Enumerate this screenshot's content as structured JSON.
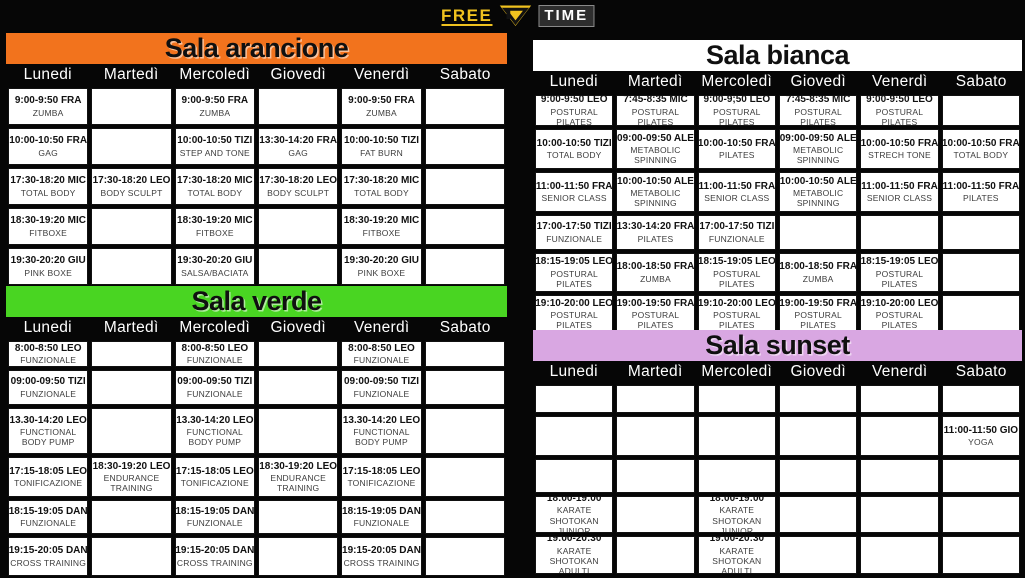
{
  "logo": {
    "free": "FREE",
    "time": "TIME",
    "brand_yellow": "#f0c21f"
  },
  "days": [
    "Lunedi",
    "Martedì",
    "Mercoledì",
    "Giovedì",
    "Venerdì",
    "Sabato"
  ],
  "rooms": [
    {
      "id": "arancione",
      "title": "Sala arancione",
      "color": "#f2731d",
      "rows": [
        [
          {
            "time": "9:00-9:50 FRA",
            "activity": "ZUMBA"
          },
          null,
          {
            "time": "9:00-9:50 FRA",
            "activity": "ZUMBA"
          },
          null,
          {
            "time": "9:00-9:50 FRA",
            "activity": "ZUMBA"
          },
          null
        ],
        [
          {
            "time": "10:00-10:50 FRA",
            "activity": "GAG"
          },
          null,
          {
            "time": "10:00-10:50 TIZI",
            "activity": "STEP AND TONE"
          },
          {
            "time": "13:30-14:20 FRA",
            "activity": "GAG"
          },
          {
            "time": "10:00-10:50 TIZI",
            "activity": "FAT BURN"
          },
          null
        ],
        [
          {
            "time": "17:30-18:20 MIC",
            "activity": "TOTAL BODY"
          },
          {
            "time": "17:30-18:20 LEO",
            "activity": "BODY SCULPT"
          },
          {
            "time": "17:30-18:20 MIC",
            "activity": "TOTAL BODY"
          },
          {
            "time": "17:30-18:20 LEO",
            "activity": "BODY SCULPT"
          },
          {
            "time": "17:30-18:20 MIC",
            "activity": "TOTAL BODY"
          },
          null
        ],
        [
          {
            "time": "18:30-19:20  MIC",
            "activity": "FITBOXE"
          },
          null,
          {
            "time": "18:30-19:20  MIC",
            "activity": "FITBOXE"
          },
          null,
          {
            "time": "18:30-19:20  MIC",
            "activity": "FITBOXE"
          },
          null
        ],
        [
          {
            "time": "19:30-20:20 GIU",
            "activity": "PINK BOXE"
          },
          null,
          {
            "time": "19:30-20:20 GIU",
            "activity": "SALSA/BACIATA"
          },
          null,
          {
            "time": "19:30-20:20 GIU",
            "activity": "PINK BOXE"
          },
          null
        ]
      ]
    },
    {
      "id": "verde",
      "title": "Sala verde",
      "color": "#49d522",
      "rows": [
        [
          {
            "time": "8:00-8:50 LEO",
            "activity": "FUNZIONALE"
          },
          null,
          {
            "time": "8:00-8:50 LEO",
            "activity": "FUNZIONALE"
          },
          null,
          {
            "time": "8:00-8:50 LEO",
            "activity": "FUNZIONALE"
          },
          null
        ],
        [
          {
            "time": "09:00-09:50 TIZI",
            "activity": "FUNZIONALE"
          },
          null,
          {
            "time": "09:00-09:50 TIZI",
            "activity": "FUNZIONALE"
          },
          null,
          {
            "time": "09:00-09:50 TIZI",
            "activity": "FUNZIONALE"
          },
          null
        ],
        [
          {
            "time": "13.30-14:20 LEO",
            "activity": "FUNCTIONAL BODY PUMP"
          },
          null,
          {
            "time": "13.30-14:20 LEO",
            "activity": "FUNCTIONAL BODY PUMP"
          },
          null,
          {
            "time": "13.30-14:20 LEO",
            "activity": "FUNCTIONAL BODY PUMP"
          },
          null
        ],
        [
          {
            "time": "17:15-18:05 LEO",
            "activity": "TONIFICAZIONE"
          },
          {
            "time": "18:30-19:20 LEO",
            "activity": "ENDURANCE TRAINING"
          },
          {
            "time": "17:15-18:05 LEO",
            "activity": "TONIFICAZIONE"
          },
          {
            "time": "18:30-19:20 LEO",
            "activity": "ENDURANCE TRAINING"
          },
          {
            "time": "17:15-18:05 LEO",
            "activity": "TONIFICAZIONE"
          },
          null
        ],
        [
          {
            "time": "18:15-19:05 DAN",
            "activity": "FUNZIONALE"
          },
          null,
          {
            "time": "18:15-19:05 DAN",
            "activity": "FUNZIONALE"
          },
          null,
          {
            "time": "18:15-19:05 DAN",
            "activity": "FUNZIONALE"
          },
          null
        ],
        [
          {
            "time": "19:15-20:05 DAN",
            "activity": "CROSS TRAINING"
          },
          null,
          {
            "time": "19:15-20:05 DAN",
            "activity": "CROSS TRAINING"
          },
          null,
          {
            "time": "19:15-20:05 DAN",
            "activity": "CROSS TRAINING"
          },
          null
        ]
      ]
    },
    {
      "id": "bianca",
      "title": "Sala bianca",
      "color": "#ffffff",
      "rows": [
        [
          {
            "time": "9:00-9:50 LEO",
            "activity": "POSTURAL PILATES"
          },
          {
            "time": "7:45-8:35 MIC",
            "activity": "POSTURAL PILATES"
          },
          {
            "time": "9:00-9;50 LEO",
            "activity": "POSTURAL PILATES"
          },
          {
            "time": "7:45-8:35 MIC",
            "activity": "POSTURAL PILATES"
          },
          {
            "time": "9:00-9:50 LEO",
            "activity": "POSTURAL PILATES"
          },
          null
        ],
        [
          {
            "time": "10:00-10:50 TIZI",
            "activity": "TOTAL BODY"
          },
          {
            "time": "09:00-09:50 ALE",
            "activity": "METABOLIC SPINNING"
          },
          {
            "time": "10:00-10:50 FRA",
            "activity": "PILATES"
          },
          {
            "time": "09:00-09:50 ALE",
            "activity": "METABOLIC SPINNING"
          },
          {
            "time": "10:00-10:50 FRA",
            "activity": "STRECH TONE"
          },
          {
            "time": "10:00-10:50 FRA",
            "activity": "TOTAL BODY"
          }
        ],
        [
          {
            "time": "11:00-11:50 FRA",
            "activity": "SENIOR CLASS"
          },
          {
            "time": "10:00-10:50 ALE",
            "activity": "METABOLIC SPINNING"
          },
          {
            "time": "11:00-11:50 FRA",
            "activity": "SENIOR CLASS"
          },
          {
            "time": "10:00-10:50 ALE",
            "activity": "METABOLIC SPINNING"
          },
          {
            "time": "11:00-11:50 FRA",
            "activity": "SENIOR CLASS"
          },
          {
            "time": "11:00-11:50 FRA",
            "activity": "PILATES"
          }
        ],
        [
          {
            "time": "17:00-17:50 TIZI",
            "activity": "FUNZIONALE"
          },
          {
            "time": "13:30-14:20 FRA",
            "activity": "PILATES"
          },
          {
            "time": "17:00-17:50 TIZI",
            "activity": "FUNZIONALE"
          },
          null,
          null,
          null
        ],
        [
          {
            "time": "18:15-19:05 LEO",
            "activity": "POSTURAL PILATES"
          },
          {
            "time": "18:00-18:50  FRA",
            "activity": "ZUMBA"
          },
          {
            "time": "18:15-19:05 LEO",
            "activity": "POSTURAL PILATES"
          },
          {
            "time": "18:00-18:50  FRA",
            "activity": "ZUMBA"
          },
          {
            "time": "18:15-19:05 LEO",
            "activity": "POSTURAL PILATES"
          },
          null
        ],
        [
          {
            "time": "19:10-20:00 LEO",
            "activity": "POSTURAL PILATES"
          },
          {
            "time": "19:00-19:50 FRA",
            "activity": "POSTURAL PILATES"
          },
          {
            "time": "19:10-20:00 LEO",
            "activity": "POSTURAL PILATES"
          },
          {
            "time": "19:00-19:50 FRA",
            "activity": "POSTURAL PILATES"
          },
          {
            "time": "19:10-20:00 LEO",
            "activity": "POSTURAL PILATES"
          },
          null
        ]
      ]
    },
    {
      "id": "sunset",
      "title": "Sala sunset",
      "color": "#d9a7e2",
      "rows": [
        [
          null,
          null,
          null,
          null,
          null,
          null
        ],
        [
          null,
          null,
          null,
          null,
          null,
          {
            "time": "11:00-11:50 GIO",
            "activity": "YOGA"
          }
        ],
        [
          null,
          null,
          null,
          null,
          null,
          null
        ],
        [
          {
            "time": "18:00-19:00",
            "activity": "KARATE SHOTOKAN JUNIOR"
          },
          null,
          {
            "time": "18:00-19:00",
            "activity": "KARATE SHOTOKAN JUNIOR"
          },
          null,
          null,
          null
        ],
        [
          {
            "time": "19:00-20:30",
            "activity": "KARATE SHOTOKAN ADULTI"
          },
          null,
          {
            "time": "19:00-20:30",
            "activity": "KARATE SHOTOKAN ADULTI"
          },
          null,
          null,
          null
        ]
      ]
    }
  ]
}
